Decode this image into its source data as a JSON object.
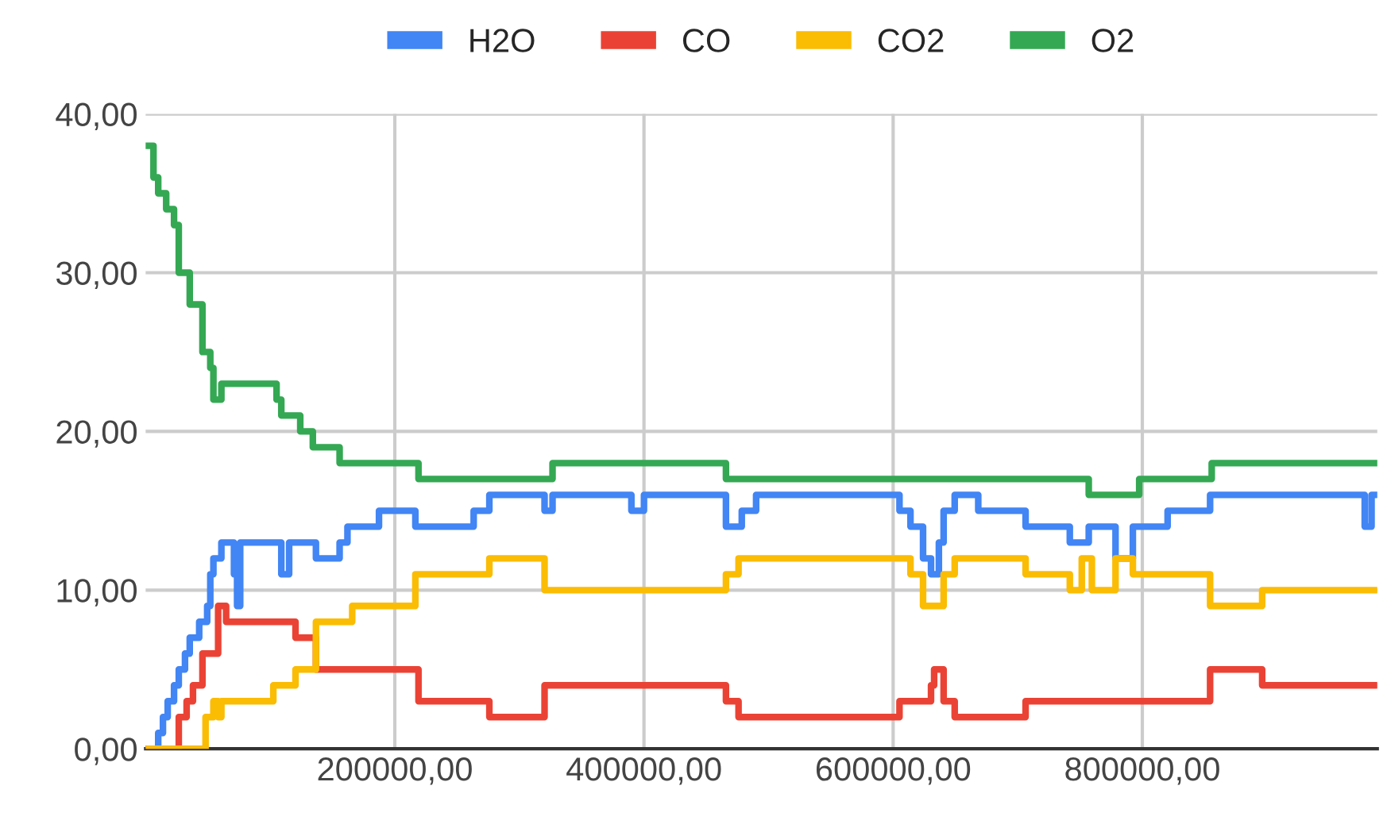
{
  "chart_data": {
    "type": "step",
    "legend": "top",
    "grid": true,
    "marker": "none",
    "line_style": "solid",
    "xlim": [
      0,
      988600
    ],
    "ylim": [
      0,
      40
    ],
    "xticks": [
      {
        "value": 200000,
        "label": "200000,00"
      },
      {
        "value": 400000,
        "label": "400000,00"
      },
      {
        "value": 600000,
        "label": "600000,00"
      },
      {
        "value": 800000,
        "label": "800000,00"
      }
    ],
    "yticks": [
      {
        "value": 0,
        "label": "0,00"
      },
      {
        "value": 10,
        "label": "10,00"
      },
      {
        "value": 20,
        "label": "20,00"
      },
      {
        "value": 30,
        "label": "30,00"
      },
      {
        "value": 40,
        "label": "40,00"
      }
    ],
    "series": [
      {
        "name": "H2O",
        "color": "#4285f4",
        "x": [
          0,
          6300,
          10100,
          13900,
          17700,
          22800,
          26600,
          31600,
          35400,
          43000,
          49400,
          51900,
          54400,
          60800,
          70900,
          73400,
          75900,
          108900,
          115200,
          136700,
          155700,
          162000,
          187300,
          216500,
          263300,
          275900,
          320200,
          326600,
          389900,
          400000,
          465800,
          478500,
          490000,
          605100,
          613900,
          624000,
          630400,
          636700,
          640500,
          649400,
          668300,
          706300,
          741800,
          757000,
          778500,
          792400,
          820300,
          854400,
          978500,
          984000,
          988000
        ],
        "values": [
          0,
          0,
          1,
          2,
          3,
          4,
          5,
          6,
          7,
          8,
          9,
          11,
          12,
          13,
          11,
          9,
          13,
          11,
          13,
          12,
          13,
          14,
          15,
          14,
          15,
          16,
          15,
          16,
          15,
          16,
          14,
          15,
          16,
          15,
          14,
          12,
          11,
          13,
          15,
          16,
          15,
          14,
          13,
          14,
          12,
          14,
          15,
          16,
          14,
          16,
          16
        ]
      },
      {
        "name": "CO",
        "color": "#ea4335",
        "x": [
          0,
          26600,
          32900,
          38000,
          45600,
          58200,
          64600,
          120300,
          136700,
          219000,
          275900,
          320200,
          465800,
          475900,
          605100,
          630400,
          632900,
          640500,
          649400,
          706300,
          854400,
          896200,
          988000
        ],
        "values": [
          0,
          2,
          3,
          4,
          6,
          9,
          8,
          7,
          5,
          3,
          2,
          4,
          3,
          2,
          3,
          4,
          5,
          3,
          2,
          3,
          5,
          4,
          4
        ]
      },
      {
        "name": "CO2",
        "color": "#fbbc04",
        "x": [
          0,
          48100,
          54400,
          58200,
          60800,
          102500,
          120300,
          136700,
          165800,
          216500,
          275900,
          320200,
          465800,
          475900,
          613900,
          624000,
          640500,
          649400,
          706300,
          741800,
          751400,
          759500,
          778500,
          792400,
          854400,
          896200,
          988000
        ],
        "values": [
          0,
          2,
          3,
          2,
          3,
          4,
          5,
          8,
          9,
          11,
          12,
          10,
          11,
          12,
          11,
          9,
          11,
          12,
          11,
          10,
          12,
          10,
          12,
          11,
          9,
          10,
          10
        ]
      },
      {
        "name": "O2",
        "color": "#34a853",
        "x": [
          0,
          6300,
          10100,
          16500,
          22800,
          26600,
          35400,
          45600,
          51900,
          54400,
          60800,
          105100,
          108900,
          124100,
          134200,
          155700,
          219000,
          326600,
          465800,
          757000,
          797500,
          855700,
          988000
        ],
        "values": [
          38,
          36,
          35,
          34,
          33,
          30,
          28,
          25,
          24,
          22,
          23,
          22,
          21,
          20,
          19,
          18,
          17,
          18,
          17,
          16,
          17,
          18,
          18
        ]
      }
    ]
  }
}
